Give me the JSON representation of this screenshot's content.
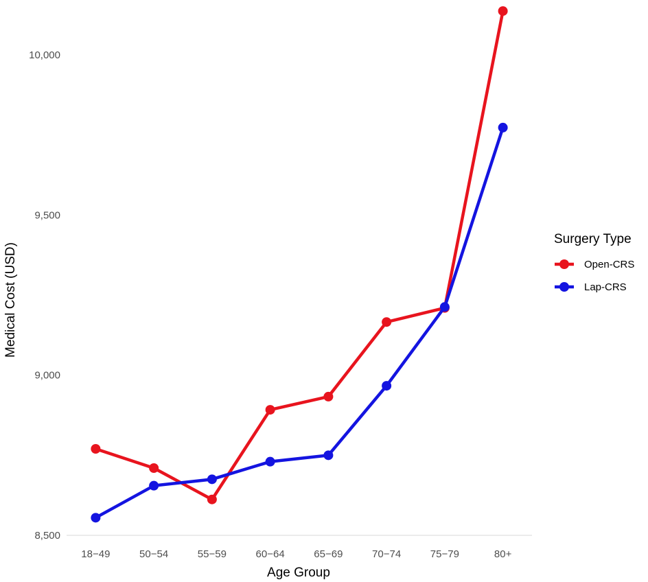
{
  "chart_data": {
    "type": "line",
    "xlabel": "Age Group",
    "ylabel": "Medical Cost (USD)",
    "categories": [
      "18−49",
      "50−54",
      "55−59",
      "60−64",
      "65−69",
      "70−74",
      "75−79",
      "80+"
    ],
    "ylim": [
      8475,
      10150
    ],
    "yticks": [
      8500,
      9000,
      9500,
      10000
    ],
    "ytick_labels": [
      "8,500",
      "9,000",
      "9,500",
      "10,000"
    ],
    "grid": false,
    "legend": {
      "title": "Surgery Type",
      "placement": "right"
    },
    "series": [
      {
        "name": "Open-CRS",
        "color": "#e8141e",
        "values": [
          8770,
          8710,
          8612,
          8892,
          8933,
          9166,
          9210,
          10137
        ]
      },
      {
        "name": "Lap-CRS",
        "color": "#1414e0",
        "values": [
          8555,
          8655,
          8675,
          8730,
          8750,
          8967,
          9213,
          9773
        ]
      }
    ]
  }
}
